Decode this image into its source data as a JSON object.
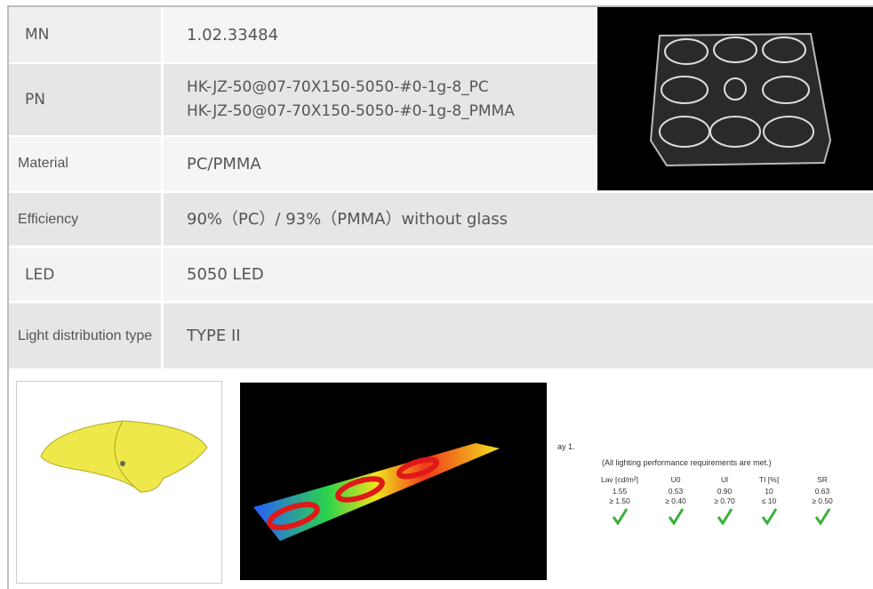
{
  "table": {
    "rows": [
      {
        "label": "MN",
        "lines": [
          "1.02.33484"
        ]
      },
      {
        "label": "PN",
        "lines": [
          "HK-JZ-50@07-70X150-5050-#0-1g-8_PC",
          "HK-JZ-50@07-70X150-5050-#0-1g-8_PMMA"
        ]
      },
      {
        "label": "Material",
        "lines": [
          "PC/PMMA"
        ]
      },
      {
        "label": "Efficiency",
        "lines": [
          "90%（PC）/ 93%（PMMA）without glass"
        ]
      },
      {
        "label": "LED",
        "lines": [
          "5050 LED"
        ]
      },
      {
        "label": "Light distribution type",
        "lines": [
          "TYPE II"
        ]
      }
    ]
  },
  "compliance": {
    "heading": "ay 1.",
    "note": "(All lighting performance requirements are met.)",
    "headers": [
      "Lav [cd/m²]",
      "U0",
      "Ul",
      "TI [%]",
      "SR"
    ],
    "rows": [
      [
        "1.55",
        "0.53",
        "0.90",
        "10",
        "0.63"
      ],
      [
        "≥ 1.50",
        "≥ 0.40",
        "≥ 0.70",
        "≤ 10",
        "≥ 0.50"
      ]
    ]
  }
}
